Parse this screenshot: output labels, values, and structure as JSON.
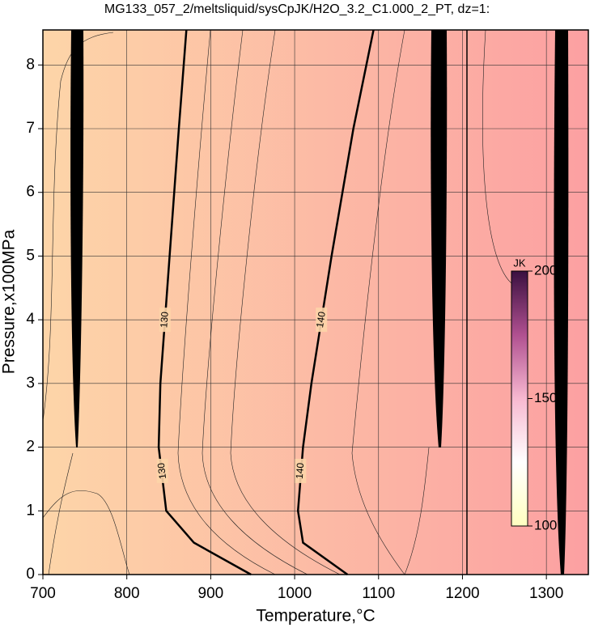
{
  "chart_data": {
    "type": "contour",
    "title": "MG133_057_2/meltsliquid/sysCpJK/H2O_3.2_C1.000_2_PT, dz=1:",
    "x_label": "Temperature,°C",
    "y_label": "Pressure,x100MPa",
    "xlim": [
      700,
      1350
    ],
    "ylim": [
      0,
      8.55
    ],
    "xticks": [
      700,
      800,
      900,
      1000,
      1100,
      1200,
      1300
    ],
    "yticks": [
      0,
      1,
      2,
      3,
      4,
      5,
      6,
      7,
      8
    ],
    "grid": true,
    "background_colors": [
      "#fdd5a8",
      "#fca0a2"
    ],
    "contours": [
      {
        "level": 130,
        "x": [
          948,
          880,
          847,
          838,
          840,
          851,
          862,
          871
        ],
        "y": [
          0,
          0.5,
          1,
          2,
          3,
          5,
          7,
          8.55
        ]
      },
      {
        "level": 140,
        "x": [
          1063,
          1010,
          1004,
          1010,
          1020,
          1044,
          1070,
          1094
        ],
        "y": [
          0,
          0.5,
          1,
          2,
          3,
          5,
          7,
          8.55
        ]
      }
    ],
    "colorbar": {
      "label": "JK",
      "lim": [
        100,
        200
      ],
      "ticks": [
        100,
        150,
        200
      ],
      "colors": [
        "#ffffc0",
        "#ffffff",
        "#f7b8d0",
        "#b05090",
        "#3a1040"
      ]
    }
  }
}
